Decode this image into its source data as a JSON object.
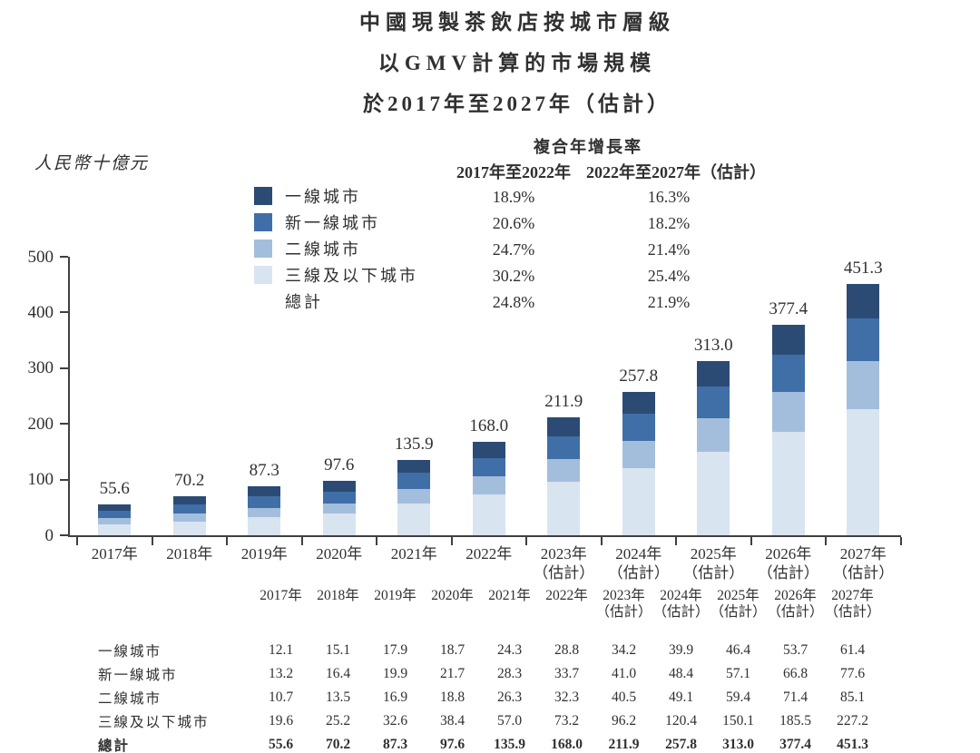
{
  "title": {
    "line1": "中國現製茶飲店按城市層級",
    "line2": "以GMV計算的市場規模",
    "line3": "於2017年至2027年（估計）"
  },
  "unit_label": "人民幣十億元",
  "cagr": {
    "header": "複合年增長率",
    "col1_header": "2017年至2022年",
    "col2_header": "2022年至2027年（估計）",
    "rows": [
      {
        "label": "一線城市",
        "v1": "18.9%",
        "v2": "16.3%",
        "swatch": true
      },
      {
        "label": "新一線城市",
        "v1": "20.6%",
        "v2": "18.2%",
        "swatch": true
      },
      {
        "label": "二線城市",
        "v1": "24.7%",
        "v2": "21.4%",
        "swatch": true
      },
      {
        "label": "三線及以下城市",
        "v1": "30.2%",
        "v2": "25.4%",
        "swatch": true
      },
      {
        "label": "總計",
        "v1": "24.8%",
        "v2": "21.9%",
        "swatch": false
      }
    ]
  },
  "chart_data": {
    "type": "bar",
    "stacked": true,
    "title": "中國現製茶飲店按城市層級以GMV計算的市場規模於2017年至2027年（估計）",
    "ylabel": "人民幣十億元",
    "ylim": [
      0,
      500
    ],
    "yticks": [
      0,
      100,
      200,
      300,
      400,
      500
    ],
    "grid": false,
    "legend_position": "top-left",
    "categories": [
      "2017年",
      "2018年",
      "2019年",
      "2020年",
      "2021年",
      "2022年",
      "2023年",
      "2024年",
      "2025年",
      "2026年",
      "2027年"
    ],
    "category_notes": [
      "",
      "",
      "",
      "",
      "",
      "",
      "（估計）",
      "（估計）",
      "（估計）",
      "（估計）",
      "（估計）"
    ],
    "series": [
      {
        "name": "一線城市",
        "color": "#2b4b74",
        "values": [
          12.1,
          15.1,
          17.9,
          18.7,
          24.3,
          28.8,
          34.2,
          39.9,
          46.4,
          53.7,
          61.4
        ]
      },
      {
        "name": "新一線城市",
        "color": "#3f6fa6",
        "values": [
          13.2,
          16.4,
          19.9,
          21.7,
          28.3,
          33.7,
          41.0,
          48.4,
          57.1,
          66.8,
          77.6
        ]
      },
      {
        "name": "二線城市",
        "color": "#a3bedd",
        "values": [
          10.7,
          13.5,
          16.9,
          18.8,
          26.3,
          32.3,
          40.5,
          49.1,
          59.4,
          71.4,
          85.1
        ]
      },
      {
        "name": "三線及以下城市",
        "color": "#d9e4f1",
        "values": [
          19.6,
          25.2,
          32.6,
          38.4,
          57.0,
          73.2,
          96.2,
          120.4,
          150.1,
          185.5,
          227.2
        ]
      }
    ],
    "totals": [
      55.6,
      70.2,
      87.3,
      97.6,
      135.9,
      168.0,
      211.9,
      257.8,
      313.0,
      377.4,
      451.3
    ],
    "total_label": "總計"
  }
}
